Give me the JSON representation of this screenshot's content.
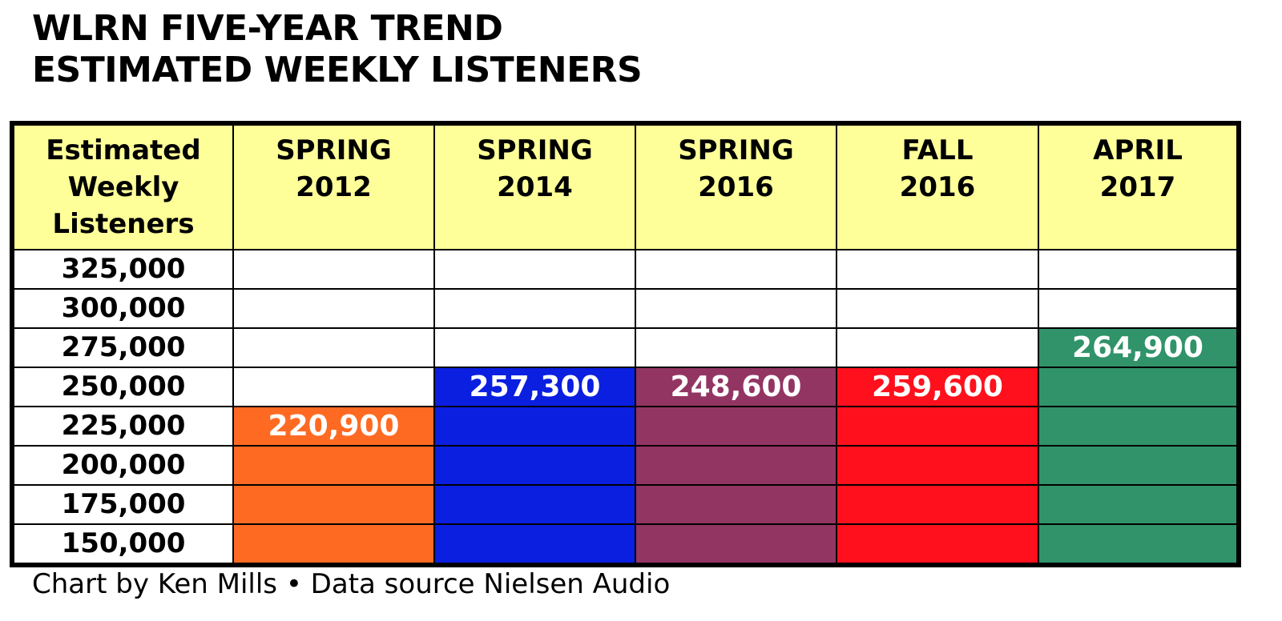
{
  "chart_data": {
    "type": "table",
    "title_lines": [
      "WLRN FIVE-YEAR TREND",
      "ESTIMATED WEEKLY LISTENERS"
    ],
    "row_header_label": "Estimated Weekly Listeners",
    "y_levels": [
      "325,000",
      "300,000",
      "275,000",
      "250,000",
      "225,000",
      "200,000",
      "175,000",
      "150,000"
    ],
    "y_values": [
      325000,
      300000,
      275000,
      250000,
      225000,
      200000,
      175000,
      150000
    ],
    "series": [
      {
        "name_lines": [
          "SPRING",
          "2012"
        ],
        "value": 220900,
        "label": "220,900",
        "color": "#ff6a22"
      },
      {
        "name_lines": [
          "SPRING",
          "2014"
        ],
        "value": 257300,
        "label": "257,300",
        "color": "#0a1fe0"
      },
      {
        "name_lines": [
          "SPRING",
          "2016"
        ],
        "value": 248600,
        "label": "248,600",
        "color": "#933563"
      },
      {
        "name_lines": [
          "FALL",
          "2016"
        ],
        "value": 259600,
        "label": "259,600",
        "color": "#ff101c"
      },
      {
        "name_lines": [
          "APRIL",
          "2017"
        ],
        "value": 264900,
        "label": "264,900",
        "color": "#31936a"
      }
    ],
    "grid": true,
    "legend": "none"
  },
  "footer": "Chart by Ken Mills • Data source Nielsen Audio"
}
